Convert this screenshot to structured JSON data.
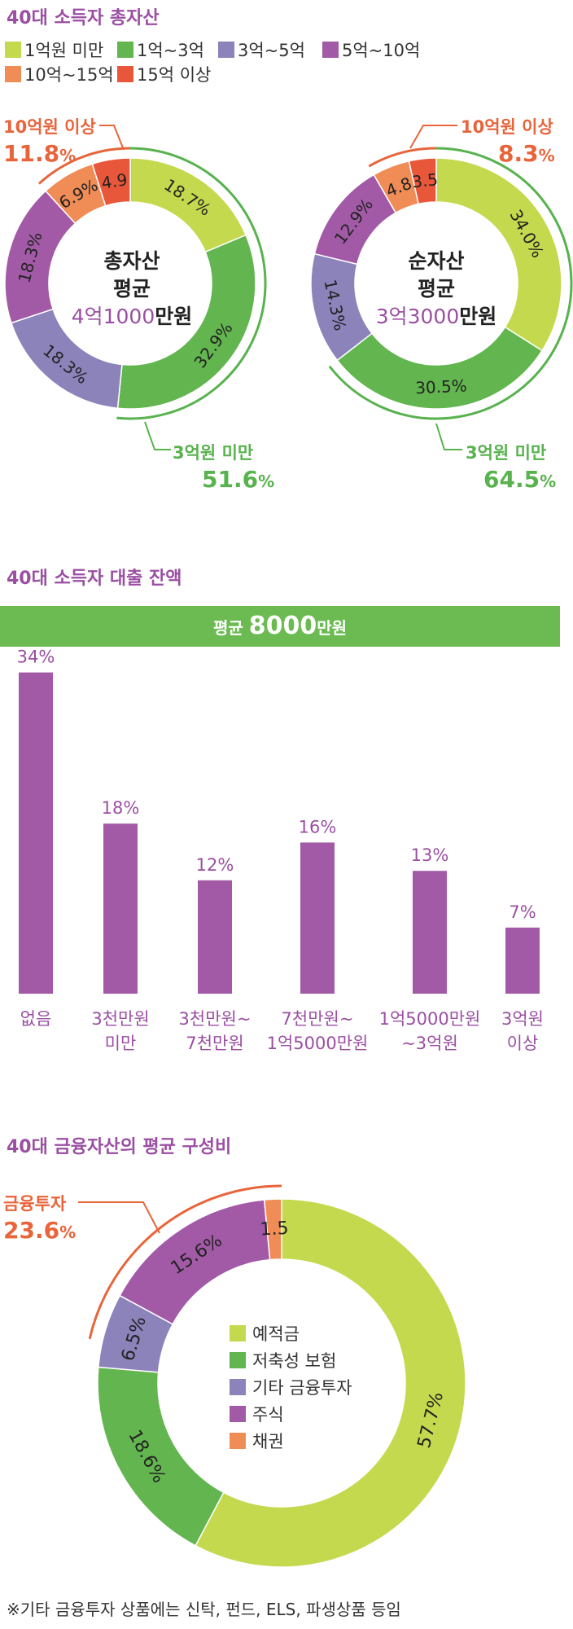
{
  "section1": {
    "title": "40대 소득자 총자산",
    "legend": [
      {
        "label": "1억원 미만",
        "color": "#c5d94e"
      },
      {
        "label": "1억~3억",
        "color": "#62b54f"
      },
      {
        "label": "3억~5억",
        "color": "#8d83bb"
      },
      {
        "label": "5억~10억",
        "color": "#a25aa6"
      },
      {
        "label": "10억~15억",
        "color": "#f08c56"
      },
      {
        "label": "15억 이상",
        "color": "#e8573a"
      }
    ]
  },
  "chart_data": [
    {
      "type": "pie",
      "name": "총자산",
      "center_line1": "총자산",
      "center_line2": "평균",
      "center_value": "4억1000",
      "center_unit": "만원",
      "categories": [
        "1억원 미만",
        "1억~3억",
        "3억~5억",
        "5억~10억",
        "10억~15억",
        "15억 이상"
      ],
      "values": [
        18.7,
        32.9,
        18.3,
        18.3,
        6.9,
        4.9
      ],
      "labels": [
        "18.7%",
        "32.9%",
        "18.3%",
        "18.3%",
        "6.9%",
        "4.9"
      ],
      "callout_top_label": "10억원 이상",
      "callout_top_value": "11.8",
      "callout_bottom_label": "3억원 미만",
      "callout_bottom_value": "51.6",
      "unit": "%"
    },
    {
      "type": "pie",
      "name": "순자산",
      "center_line1": "순자산",
      "center_line2": "평균",
      "center_value": "3억3000",
      "center_unit": "만원",
      "categories": [
        "1억원 미만",
        "1억~3억",
        "3억~5억",
        "5억~10억",
        "10억~15억",
        "15억 이상"
      ],
      "values": [
        34.0,
        30.5,
        14.3,
        12.9,
        4.8,
        3.5
      ],
      "labels": [
        "34.0%",
        "30.5%",
        "14.3%",
        "12.9%",
        "4.8",
        "3.5"
      ],
      "callout_top_label": "10억원 이상",
      "callout_top_value": "8.3",
      "callout_bottom_label": "3억원 미만",
      "callout_bottom_value": "64.5",
      "unit": "%"
    },
    {
      "type": "bar",
      "title": "40대 소득자 대출 잔액",
      "banner_prefix": "평균 ",
      "banner_value": "8000",
      "banner_unit": "만원",
      "categories": [
        [
          "없음"
        ],
        [
          "3천만원",
          "미만"
        ],
        [
          "3천만원~",
          "7천만원"
        ],
        [
          "7천만원~",
          "1억5000만원"
        ],
        [
          "1억5000만원",
          "~3억원"
        ],
        [
          "3억원",
          "이상"
        ]
      ],
      "values": [
        34,
        18,
        12,
        16,
        13,
        7
      ],
      "labels": [
        "34%",
        "18%",
        "12%",
        "16%",
        "13%",
        "7%"
      ],
      "color": "#a25aa6"
    },
    {
      "type": "pie",
      "title": "40대 금융자산의 평균 구성비",
      "categories": [
        "예적금",
        "저축성 보험",
        "기타 금융투자",
        "주식",
        "채권"
      ],
      "colors": [
        "#c5d94e",
        "#62b54f",
        "#8d83bb",
        "#a25aa6",
        "#f08c56"
      ],
      "values": [
        57.7,
        18.6,
        6.5,
        15.6,
        1.5
      ],
      "labels": [
        "57.7%",
        "18.6%",
        "6.5%",
        "15.6%",
        "1.5"
      ],
      "callout_label": "금융투자",
      "callout_value": "23.6",
      "unit": "%"
    }
  ],
  "footnote": "※기타 금융투자 상품에는 신탁, 펀드, ELS, 파생상품 등임"
}
